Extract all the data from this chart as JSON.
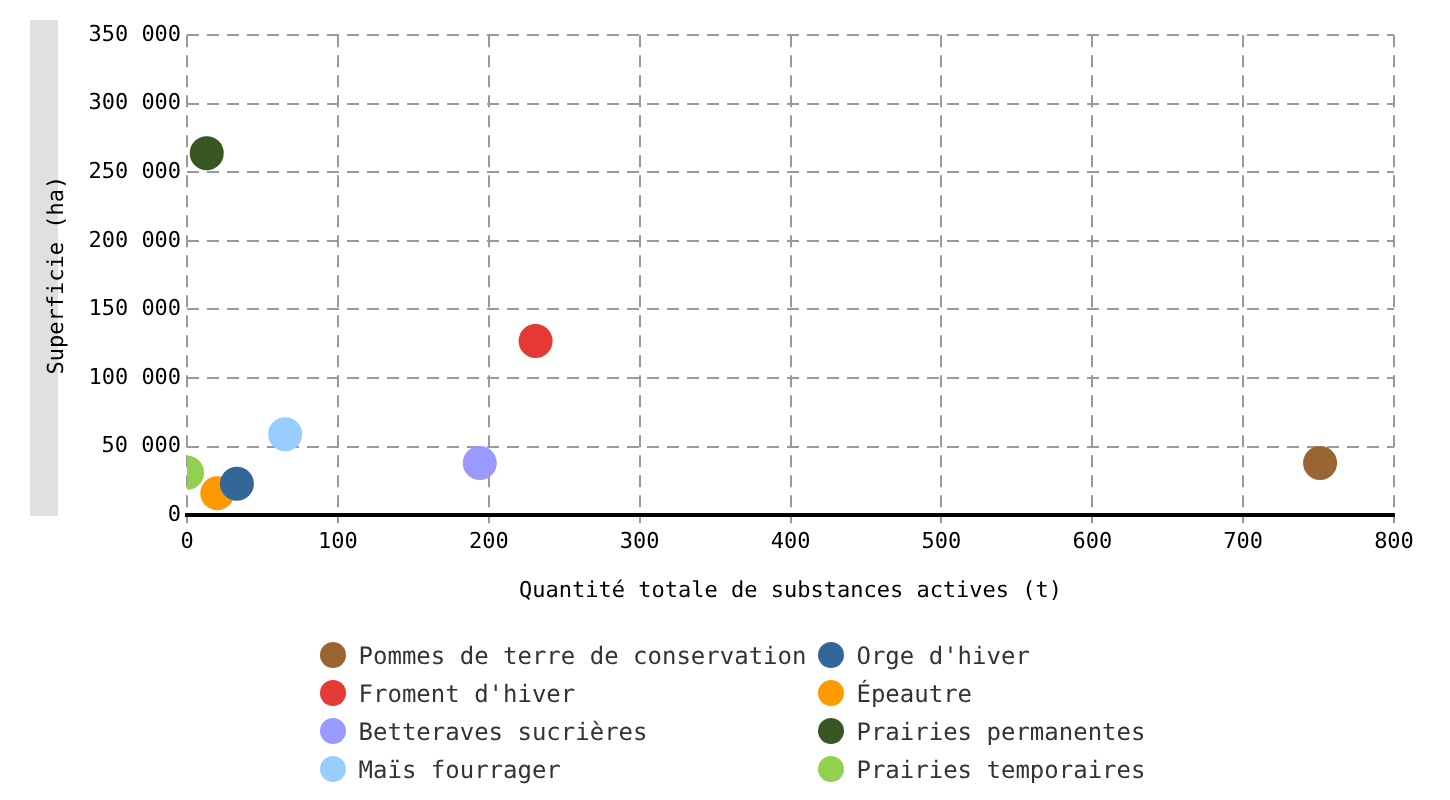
{
  "chart_data": {
    "type": "scatter",
    "xlabel": "Quantité totale de substances actives (t)",
    "ylabel": "Superficie (ha)",
    "xlim": [
      0,
      800
    ],
    "xticks": [
      0,
      100,
      200,
      300,
      400,
      500,
      600,
      700,
      800
    ],
    "ylim": [
      0,
      350000
    ],
    "yticks": [
      {
        "value": 0,
        "label": "0"
      },
      {
        "value": 50000,
        "label": "50 000"
      },
      {
        "value": 100000,
        "label": "100 000"
      },
      {
        "value": 150000,
        "label": "150 000"
      },
      {
        "value": 200000,
        "label": "200 000"
      },
      {
        "value": 250000,
        "label": "250 000"
      },
      {
        "value": 300000,
        "label": "300 000"
      },
      {
        "value": 350000,
        "label": "350 000"
      }
    ],
    "grid": true,
    "legend": "bottom",
    "marker": "circle",
    "series": [
      {
        "name": "Pommes de terre de conservation",
        "color": "#996633",
        "x": [
          751
        ],
        "values": [
          38000
        ]
      },
      {
        "name": "Froment d'hiver",
        "color": "#e53935",
        "x": [
          231
        ],
        "values": [
          127000
        ]
      },
      {
        "name": "Betteraves sucrières",
        "color": "#9999ff",
        "x": [
          194
        ],
        "values": [
          38000
        ]
      },
      {
        "name": "Maïs fourrager",
        "color": "#99ccff",
        "x": [
          65
        ],
        "values": [
          59000
        ]
      },
      {
        "name": "Orge d'hiver",
        "color": "#336699",
        "x": [
          33
        ],
        "values": [
          23000
        ]
      },
      {
        "name": "Épeautre",
        "color": "#ff9900",
        "x": [
          20
        ],
        "values": [
          16000
        ]
      },
      {
        "name": "Prairies permanentes",
        "color": "#385723",
        "x": [
          13
        ],
        "values": [
          264000
        ]
      },
      {
        "name": "Prairies temporaires",
        "color": "#92d050",
        "x": [
          0
        ],
        "values": [
          31000
        ]
      }
    ]
  }
}
